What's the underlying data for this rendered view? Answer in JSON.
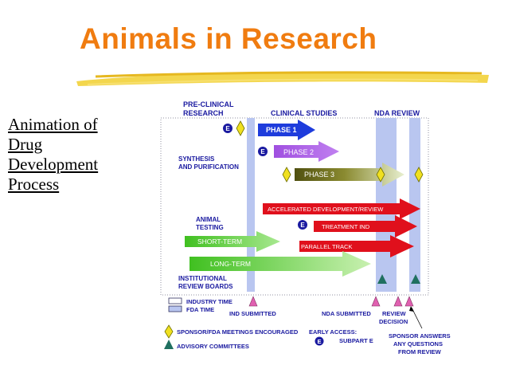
{
  "slide": {
    "title": "Animals in Research",
    "side_caption": [
      "Animation of",
      "Drug",
      "Development",
      "Process"
    ]
  },
  "diagram": {
    "headers": {
      "preclinical_line1": "PRE-CLINICAL",
      "preclinical_line2": "RESEARCH",
      "clinical": "CLINICAL STUDIES",
      "nda": "NDA REVIEW"
    },
    "left_labels": {
      "synthesis_1": "SYNTHESIS",
      "synthesis_2": "AND PURIFICATION",
      "animal_1": "ANIMAL",
      "animal_2": "TESTING",
      "irb_1": "INSTITUTIONAL",
      "irb_2": "REVIEW BOARDS"
    },
    "arrows": {
      "phase1": "PHASE 1",
      "phase2": "PHASE 2",
      "phase3": "PHASE 3",
      "accelerated": "ACCELERATED DEVELOPMENT/REVIEW",
      "treatment_ind": "TREATMENT IND",
      "parallel_track": "PARALLEL TRACK",
      "short_term": "SHORT-TERM",
      "long_term": "LONG-TERM"
    },
    "e_badge": "E",
    "legend": {
      "industry_time": "INDUSTRY TIME",
      "fda_time": "FDA TIME",
      "ind_submitted": "IND SUBMITTED",
      "nda_submitted": "NDA SUBMITTED",
      "review_decision_1": "REVIEW",
      "review_decision_2": "DECISION",
      "sponsor_meetings": "SPONSOR/FDA MEETINGS ENCOURAGED",
      "advisory": "ADVISORY COMMITTEES",
      "early_access_1": "EARLY ACCESS:",
      "early_access_2": "SUBPART E",
      "sponsor_answers_1": "SPONSOR ANSWERS",
      "sponsor_answers_2": "ANY QUESTIONS",
      "sponsor_answers_3": "FROM REVIEW"
    },
    "colors": {
      "title": "#f07c10",
      "label_blue": "#1a1aa0",
      "fda_band": "#b9c6f0",
      "phase1": "#1e3cdc",
      "phase2": "#a050e0",
      "phase3": "#5a5a10",
      "red_arrow": "#e0101c",
      "green_arrow": "#50d030",
      "diamond": "#f0e020",
      "triangle_pink": "#e060b0",
      "triangle_teal": "#207060"
    }
  }
}
